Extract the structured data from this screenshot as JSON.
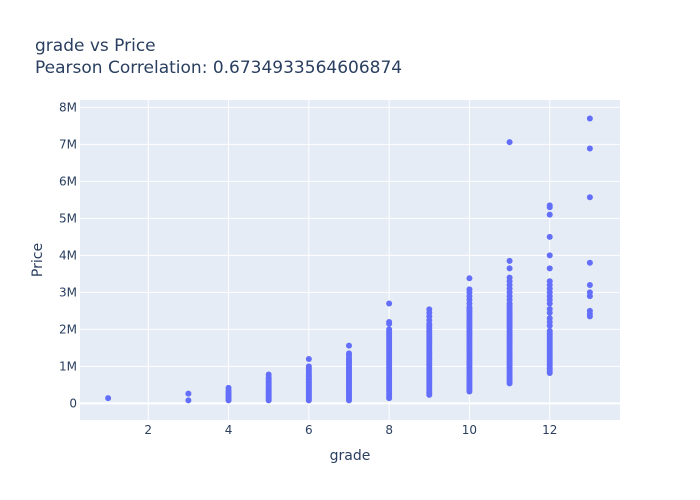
{
  "chart_data": {
    "type": "scatter",
    "title": "grade vs Price",
    "subtitle": "Pearson Correlation: 0.6734933564606874",
    "xlabel": "grade",
    "ylabel": "Price",
    "xlim": [
      0.3,
      13.75
    ],
    "ylim": [
      -450000,
      8200000
    ],
    "xticks": [
      2,
      4,
      6,
      8,
      10,
      12
    ],
    "xtick_labels": [
      "2",
      "4",
      "6",
      "8",
      "10",
      "12"
    ],
    "yticks": [
      0,
      1000000,
      2000000,
      3000000,
      4000000,
      5000000,
      6000000,
      7000000,
      8000000
    ],
    "ytick_labels": [
      "0",
      "1M",
      "2M",
      "3M",
      "4M",
      "5M",
      "6M",
      "7M",
      "8M"
    ],
    "grid": true,
    "colors": {
      "marker": "#636efa",
      "plot_bg": "#e5ecf6",
      "grid": "#ffffff",
      "text": "#2a3f5f"
    },
    "series": [
      {
        "points": [
          [
            1,
            142000
          ],
          [
            3,
            82000
          ],
          [
            3,
            262000
          ],
          [
            4,
            80000
          ],
          [
            4,
            120000
          ],
          [
            4,
            160000
          ],
          [
            4,
            200000
          ],
          [
            4,
            250000
          ],
          [
            4,
            300000
          ],
          [
            4,
            350000
          ],
          [
            4,
            420000
          ],
          [
            5,
            80000
          ],
          [
            5,
            120000
          ],
          [
            5,
            160000
          ],
          [
            5,
            200000
          ],
          [
            5,
            240000
          ],
          [
            5,
            280000
          ],
          [
            5,
            320000
          ],
          [
            5,
            360000
          ],
          [
            5,
            400000
          ],
          [
            5,
            450000
          ],
          [
            5,
            500000
          ],
          [
            5,
            550000
          ],
          [
            5,
            600000
          ],
          [
            5,
            650000
          ],
          [
            5,
            700000
          ],
          [
            5,
            780000
          ],
          [
            6,
            80000
          ],
          [
            6,
            120000
          ],
          [
            6,
            160000
          ],
          [
            6,
            200000
          ],
          [
            6,
            240000
          ],
          [
            6,
            280000
          ],
          [
            6,
            320000
          ],
          [
            6,
            360000
          ],
          [
            6,
            400000
          ],
          [
            6,
            440000
          ],
          [
            6,
            480000
          ],
          [
            6,
            520000
          ],
          [
            6,
            560000
          ],
          [
            6,
            600000
          ],
          [
            6,
            640000
          ],
          [
            6,
            680000
          ],
          [
            6,
            720000
          ],
          [
            6,
            760000
          ],
          [
            6,
            800000
          ],
          [
            6,
            850000
          ],
          [
            6,
            900000
          ],
          [
            6,
            950000
          ],
          [
            6,
            1000000
          ],
          [
            6,
            1200000
          ],
          [
            7,
            80000
          ],
          [
            7,
            130000
          ],
          [
            7,
            180000
          ],
          [
            7,
            230000
          ],
          [
            7,
            280000
          ],
          [
            7,
            330000
          ],
          [
            7,
            380000
          ],
          [
            7,
            430000
          ],
          [
            7,
            480000
          ],
          [
            7,
            530000
          ],
          [
            7,
            580000
          ],
          [
            7,
            630000
          ],
          [
            7,
            680000
          ],
          [
            7,
            730000
          ],
          [
            7,
            780000
          ],
          [
            7,
            830000
          ],
          [
            7,
            880000
          ],
          [
            7,
            930000
          ],
          [
            7,
            980000
          ],
          [
            7,
            1030000
          ],
          [
            7,
            1080000
          ],
          [
            7,
            1130000
          ],
          [
            7,
            1180000
          ],
          [
            7,
            1230000
          ],
          [
            7,
            1300000
          ],
          [
            7,
            1350000
          ],
          [
            7,
            1560000
          ],
          [
            8,
            140000
          ],
          [
            8,
            200000
          ],
          [
            8,
            260000
          ],
          [
            8,
            320000
          ],
          [
            8,
            380000
          ],
          [
            8,
            440000
          ],
          [
            8,
            500000
          ],
          [
            8,
            560000
          ],
          [
            8,
            620000
          ],
          [
            8,
            680000
          ],
          [
            8,
            740000
          ],
          [
            8,
            800000
          ],
          [
            8,
            860000
          ],
          [
            8,
            920000
          ],
          [
            8,
            980000
          ],
          [
            8,
            1040000
          ],
          [
            8,
            1100000
          ],
          [
            8,
            1160000
          ],
          [
            8,
            1220000
          ],
          [
            8,
            1280000
          ],
          [
            8,
            1340000
          ],
          [
            8,
            1400000
          ],
          [
            8,
            1460000
          ],
          [
            8,
            1520000
          ],
          [
            8,
            1580000
          ],
          [
            8,
            1640000
          ],
          [
            8,
            1700000
          ],
          [
            8,
            1760000
          ],
          [
            8,
            1820000
          ],
          [
            8,
            1880000
          ],
          [
            8,
            1940000
          ],
          [
            8,
            2000000
          ],
          [
            8,
            2150000
          ],
          [
            8,
            2200000
          ],
          [
            8,
            2700000
          ],
          [
            9,
            230000
          ],
          [
            9,
            290000
          ],
          [
            9,
            350000
          ],
          [
            9,
            410000
          ],
          [
            9,
            470000
          ],
          [
            9,
            530000
          ],
          [
            9,
            590000
          ],
          [
            9,
            650000
          ],
          [
            9,
            710000
          ],
          [
            9,
            770000
          ],
          [
            9,
            830000
          ],
          [
            9,
            890000
          ],
          [
            9,
            950000
          ],
          [
            9,
            1010000
          ],
          [
            9,
            1070000
          ],
          [
            9,
            1130000
          ],
          [
            9,
            1190000
          ],
          [
            9,
            1250000
          ],
          [
            9,
            1310000
          ],
          [
            9,
            1370000
          ],
          [
            9,
            1430000
          ],
          [
            9,
            1490000
          ],
          [
            9,
            1550000
          ],
          [
            9,
            1610000
          ],
          [
            9,
            1670000
          ],
          [
            9,
            1730000
          ],
          [
            9,
            1790000
          ],
          [
            9,
            1850000
          ],
          [
            9,
            1910000
          ],
          [
            9,
            1970000
          ],
          [
            9,
            2030000
          ],
          [
            9,
            2090000
          ],
          [
            9,
            2150000
          ],
          [
            9,
            2250000
          ],
          [
            9,
            2350000
          ],
          [
            9,
            2450000
          ],
          [
            9,
            2540000
          ],
          [
            10,
            320000
          ],
          [
            10,
            380000
          ],
          [
            10,
            440000
          ],
          [
            10,
            500000
          ],
          [
            10,
            560000
          ],
          [
            10,
            620000
          ],
          [
            10,
            680000
          ],
          [
            10,
            740000
          ],
          [
            10,
            800000
          ],
          [
            10,
            860000
          ],
          [
            10,
            920000
          ],
          [
            10,
            980000
          ],
          [
            10,
            1040000
          ],
          [
            10,
            1100000
          ],
          [
            10,
            1160000
          ],
          [
            10,
            1220000
          ],
          [
            10,
            1280000
          ],
          [
            10,
            1340000
          ],
          [
            10,
            1400000
          ],
          [
            10,
            1460000
          ],
          [
            10,
            1520000
          ],
          [
            10,
            1580000
          ],
          [
            10,
            1640000
          ],
          [
            10,
            1700000
          ],
          [
            10,
            1760000
          ],
          [
            10,
            1820000
          ],
          [
            10,
            1880000
          ],
          [
            10,
            1940000
          ],
          [
            10,
            2000000
          ],
          [
            10,
            2060000
          ],
          [
            10,
            2120000
          ],
          [
            10,
            2180000
          ],
          [
            10,
            2240000
          ],
          [
            10,
            2300000
          ],
          [
            10,
            2360000
          ],
          [
            10,
            2420000
          ],
          [
            10,
            2480000
          ],
          [
            10,
            2540000
          ],
          [
            10,
            2600000
          ],
          [
            10,
            2700000
          ],
          [
            10,
            2800000
          ],
          [
            10,
            2900000
          ],
          [
            10,
            3000000
          ],
          [
            10,
            3080000
          ],
          [
            10,
            3380000
          ],
          [
            11,
            540000
          ],
          [
            11,
            600000
          ],
          [
            11,
            660000
          ],
          [
            11,
            720000
          ],
          [
            11,
            780000
          ],
          [
            11,
            840000
          ],
          [
            11,
            900000
          ],
          [
            11,
            960000
          ],
          [
            11,
            1020000
          ],
          [
            11,
            1080000
          ],
          [
            11,
            1140000
          ],
          [
            11,
            1200000
          ],
          [
            11,
            1260000
          ],
          [
            11,
            1320000
          ],
          [
            11,
            1380000
          ],
          [
            11,
            1440000
          ],
          [
            11,
            1500000
          ],
          [
            11,
            1560000
          ],
          [
            11,
            1620000
          ],
          [
            11,
            1680000
          ],
          [
            11,
            1740000
          ],
          [
            11,
            1800000
          ],
          [
            11,
            1860000
          ],
          [
            11,
            1920000
          ],
          [
            11,
            1980000
          ],
          [
            11,
            2040000
          ],
          [
            11,
            2100000
          ],
          [
            11,
            2160000
          ],
          [
            11,
            2220000
          ],
          [
            11,
            2280000
          ],
          [
            11,
            2340000
          ],
          [
            11,
            2400000
          ],
          [
            11,
            2460000
          ],
          [
            11,
            2520000
          ],
          [
            11,
            2580000
          ],
          [
            11,
            2640000
          ],
          [
            11,
            2700000
          ],
          [
            11,
            2800000
          ],
          [
            11,
            2900000
          ],
          [
            11,
            3000000
          ],
          [
            11,
            3100000
          ],
          [
            11,
            3200000
          ],
          [
            11,
            3300000
          ],
          [
            11,
            3400000
          ],
          [
            11,
            3650000
          ],
          [
            11,
            3850000
          ],
          [
            11,
            7060000
          ],
          [
            12,
            820000
          ],
          [
            12,
            880000
          ],
          [
            12,
            940000
          ],
          [
            12,
            1000000
          ],
          [
            12,
            1060000
          ],
          [
            12,
            1120000
          ],
          [
            12,
            1180000
          ],
          [
            12,
            1240000
          ],
          [
            12,
            1300000
          ],
          [
            12,
            1360000
          ],
          [
            12,
            1420000
          ],
          [
            12,
            1480000
          ],
          [
            12,
            1540000
          ],
          [
            12,
            1600000
          ],
          [
            12,
            1660000
          ],
          [
            12,
            1720000
          ],
          [
            12,
            1780000
          ],
          [
            12,
            1840000
          ],
          [
            12,
            1900000
          ],
          [
            12,
            1960000
          ],
          [
            12,
            2100000
          ],
          [
            12,
            2200000
          ],
          [
            12,
            2300000
          ],
          [
            12,
            2450000
          ],
          [
            12,
            2550000
          ],
          [
            12,
            2700000
          ],
          [
            12,
            2800000
          ],
          [
            12,
            2900000
          ],
          [
            12,
            3000000
          ],
          [
            12,
            3100000
          ],
          [
            12,
            3200000
          ],
          [
            12,
            3300000
          ],
          [
            12,
            3650000
          ],
          [
            12,
            4000000
          ],
          [
            12,
            4500000
          ],
          [
            12,
            5100000
          ],
          [
            12,
            5300000
          ],
          [
            12,
            5350000
          ],
          [
            13,
            2350000
          ],
          [
            13,
            2420000
          ],
          [
            13,
            2500000
          ],
          [
            13,
            2900000
          ],
          [
            13,
            3000000
          ],
          [
            13,
            3200000
          ],
          [
            13,
            3800000
          ],
          [
            13,
            5570000
          ],
          [
            13,
            6890000
          ],
          [
            13,
            7700000
          ]
        ]
      }
    ]
  }
}
